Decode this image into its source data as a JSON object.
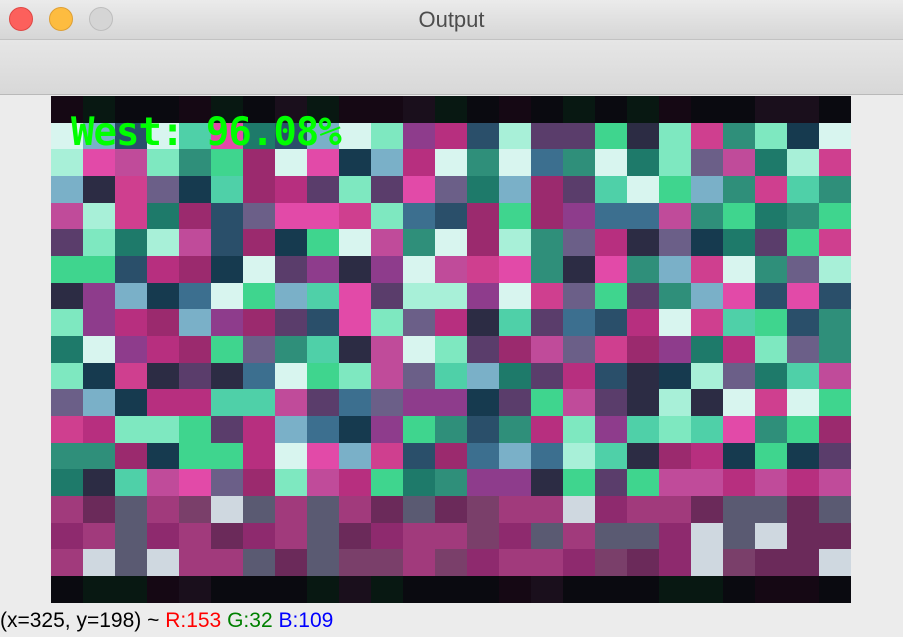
{
  "window": {
    "title": "Output"
  },
  "image": {
    "overlay_text": "West: 96.08%",
    "overlay_color": "#00ff00"
  },
  "status": {
    "coord": "(x=325, y=198) ~",
    "r": "R:153",
    "g": "G:32",
    "b": "B:109",
    "r_color": "#ff0000",
    "g_color": "#008000",
    "b_color": "#0000ff"
  },
  "mosaic_palette": [
    "#9b2a6e",
    "#3fd58e",
    "#c04b9a",
    "#2a4f6a",
    "#7ee8c0",
    "#1e7a6a",
    "#b72f7f",
    "#5a3d6b",
    "#d8f5ef",
    "#2f8f7a",
    "#8e3c8c",
    "#4fd0a8",
    "#163a4f",
    "#e24aa8",
    "#6b5f88",
    "#a8f0d8",
    "#3c6f8f",
    "#cf3f8f",
    "#2c2c44",
    "#7ab0c8"
  ]
}
